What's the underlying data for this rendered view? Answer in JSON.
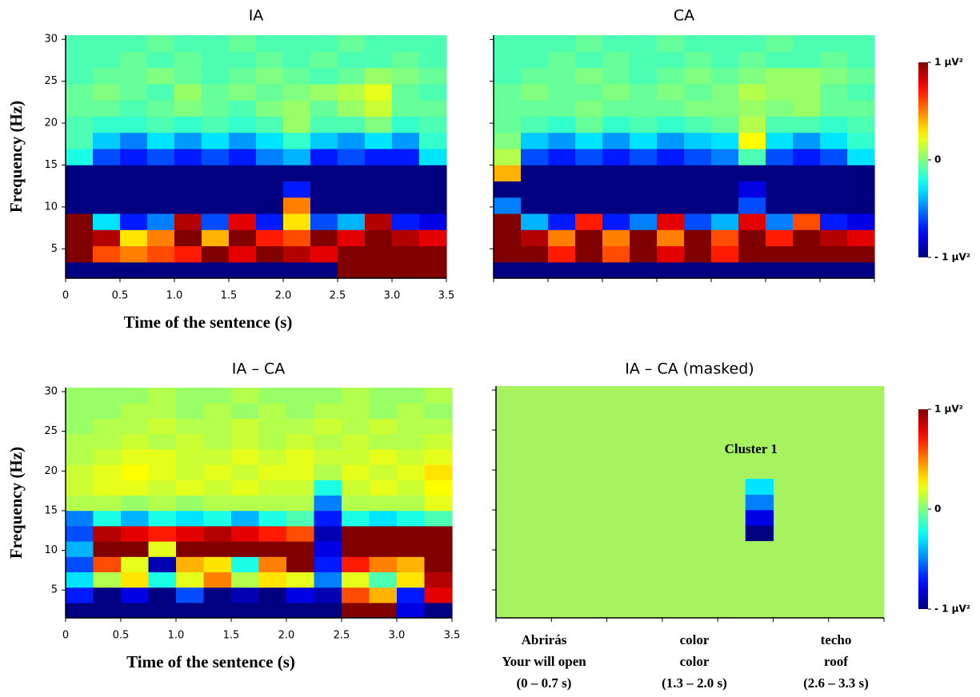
{
  "chart_data": [
    {
      "type": "heatmap",
      "title": "IA",
      "xlabel": "Time of the sentence (s)",
      "ylabel": "Frequency (Hz)",
      "xlim": [
        0,
        3.5
      ],
      "ylim": [
        1.5,
        30.5
      ],
      "zlim": [
        -1,
        1
      ],
      "tick_labels": true,
      "xticks": [
        0,
        0.5,
        {
          "value": 1,
          "label": "1.0"
        },
        1.5,
        {
          "value": 2,
          "label": "2.0"
        },
        2.5,
        {
          "value": 3,
          "label": "3.0"
        },
        3.5
      ],
      "yticks": [
        5,
        10,
        15,
        20,
        25,
        30
      ],
      "z": [
        [
          -1,
          -1,
          -1,
          -1,
          -1,
          -1,
          -1,
          -1,
          -1,
          -1,
          1,
          1,
          1,
          1
        ],
        [
          1,
          0.6,
          0.5,
          0.6,
          0.7,
          1,
          0.8,
          1,
          0.9,
          0.8,
          1,
          1,
          1,
          1
        ],
        [
          1,
          0.9,
          0.3,
          0.5,
          1,
          0.4,
          1,
          0.7,
          0.6,
          1,
          0.8,
          1,
          0.9,
          0.8
        ],
        [
          1,
          -0.3,
          -0.7,
          -0.5,
          0.9,
          -0.6,
          0.8,
          -0.7,
          0.3,
          -0.6,
          -0.4,
          0.9,
          -0.7,
          -0.8
        ],
        [
          -1,
          -1,
          -1,
          -1,
          -1,
          -1,
          -1,
          -1,
          0.5,
          -1,
          -1,
          -1,
          -1,
          -1
        ],
        [
          -1,
          -1,
          -1,
          -1,
          -1,
          -1,
          -1,
          -1,
          -0.7,
          -1,
          -1,
          -1,
          -1,
          -1
        ],
        [
          -1,
          -1,
          -1,
          -1,
          -1,
          -1,
          -1,
          -1,
          -1,
          -1,
          -1,
          -1,
          -1,
          -1
        ],
        [
          -0.2,
          -0.6,
          -0.7,
          -0.6,
          -0.7,
          -0.6,
          -0.7,
          -0.5,
          -0.4,
          -0.7,
          -0.6,
          -0.7,
          -0.7,
          -0.3
        ],
        [
          -0.1,
          -0.35,
          -0.5,
          -0.3,
          -0.45,
          -0.3,
          -0.45,
          -0.3,
          -0.15,
          -0.35,
          -0.45,
          -0.3,
          -0.45,
          -0.15
        ],
        [
          -0.1,
          -0.15,
          -0.15,
          -0.1,
          -0.15,
          -0.1,
          -0.15,
          -0.1,
          0.05,
          -0.1,
          -0.1,
          0,
          -0.15,
          -0.1
        ],
        [
          -0.05,
          -0.05,
          -0.1,
          -0.05,
          0,
          -0.05,
          -0.1,
          0,
          0.05,
          -0.05,
          0.05,
          0.15,
          -0.05,
          -0.05
        ],
        [
          -0.05,
          0,
          -0.05,
          -0.1,
          0.05,
          -0.05,
          0,
          -0.05,
          0,
          0.05,
          0.1,
          0.2,
          -0.05,
          -0.1
        ],
        [
          -0.1,
          -0.05,
          -0.05,
          0,
          -0.05,
          -0.1,
          -0.05,
          0,
          -0.05,
          -0.1,
          -0.05,
          0.05,
          0,
          -0.05
        ],
        [
          -0.1,
          -0.1,
          -0.05,
          -0.1,
          -0.05,
          -0.1,
          -0.1,
          -0.05,
          -0.1,
          -0.05,
          -0.1,
          -0.1,
          -0.05,
          -0.1
        ],
        [
          -0.1,
          -0.1,
          -0.1,
          -0.05,
          -0.1,
          -0.1,
          -0.05,
          -0.1,
          -0.1,
          -0.1,
          -0.05,
          -0.1,
          -0.1,
          -0.1
        ]
      ]
    },
    {
      "type": "heatmap",
      "title": "CA",
      "xlim": [
        0,
        3.5
      ],
      "ylim": [
        1.5,
        30.5
      ],
      "zlim": [
        -1,
        1
      ],
      "tick_labels": false,
      "xticks": [
        0,
        0.5,
        1,
        1.5,
        2,
        2.5,
        3,
        3.5
      ],
      "yticks": [
        5,
        10,
        15,
        20,
        25,
        30
      ],
      "colorbar": {
        "ticks": [
          {
            "value": 1,
            "label": "1 μV²"
          },
          0,
          {
            "value": -1,
            "label": "- 1 μV²"
          }
        ]
      },
      "z": [
        [
          -1,
          -1,
          -1,
          -1,
          -1,
          -1,
          -1,
          -1,
          -1,
          -1,
          -1,
          -1,
          -1,
          -1
        ],
        [
          1,
          1,
          0.7,
          1,
          0.6,
          1,
          0.8,
          1,
          0.7,
          1,
          1,
          1,
          1,
          1
        ],
        [
          1,
          0.9,
          0.5,
          1,
          0.5,
          1,
          0.5,
          1,
          0.6,
          1,
          0.7,
          1,
          0.9,
          0.8
        ],
        [
          1,
          -0.4,
          -0.7,
          0.7,
          -0.7,
          -0.5,
          0.8,
          -0.6,
          -0.4,
          0.8,
          -0.5,
          0.6,
          -0.7,
          -0.8
        ],
        [
          -0.5,
          -1,
          -1,
          -1,
          -1,
          -1,
          -1,
          -1,
          -1,
          -0.6,
          -1,
          -1,
          -1,
          -1
        ],
        [
          -1,
          -1,
          -1,
          -1,
          -1,
          -1,
          -1,
          -1,
          -1,
          -0.8,
          -1,
          -1,
          -1,
          -1
        ],
        [
          0.4,
          -1,
          -1,
          -1,
          -1,
          -1,
          -1,
          -1,
          -1,
          -1,
          -1,
          -1,
          -1,
          -1
        ],
        [
          0.1,
          -0.6,
          -0.7,
          -0.6,
          -0.7,
          -0.6,
          -0.7,
          -0.6,
          -0.5,
          -0.1,
          -0.6,
          -0.7,
          -0.6,
          -0.3
        ],
        [
          0,
          -0.35,
          -0.45,
          -0.3,
          -0.45,
          -0.3,
          -0.45,
          -0.35,
          -0.3,
          0.25,
          -0.3,
          -0.45,
          -0.3,
          -0.15
        ],
        [
          -0.05,
          -0.1,
          -0.15,
          -0.05,
          -0.15,
          -0.1,
          -0.15,
          -0.1,
          -0.05,
          0.1,
          -0.1,
          -0.1,
          -0.15,
          -0.1
        ],
        [
          -0.05,
          -0.05,
          -0.05,
          0,
          -0.05,
          -0.05,
          -0.05,
          0,
          0,
          0.05,
          0,
          0.05,
          -0.05,
          -0.05
        ],
        [
          -0.05,
          0,
          -0.05,
          -0.05,
          0,
          -0.05,
          0,
          -0.05,
          0,
          0.1,
          0.05,
          0.05,
          -0.05,
          -0.1
        ],
        [
          -0.1,
          -0.05,
          -0.05,
          0,
          -0.05,
          -0.1,
          -0.05,
          0,
          -0.05,
          0,
          0.05,
          0.05,
          0,
          -0.05
        ],
        [
          -0.1,
          -0.1,
          -0.05,
          -0.1,
          -0.05,
          -0.1,
          -0.1,
          -0.05,
          -0.1,
          -0.05,
          -0.1,
          -0.1,
          -0.05,
          -0.1
        ],
        [
          -0.1,
          -0.1,
          -0.1,
          -0.05,
          -0.1,
          -0.1,
          -0.05,
          -0.1,
          -0.1,
          -0.1,
          -0.05,
          -0.1,
          -0.1,
          -0.1
        ]
      ]
    },
    {
      "type": "heatmap",
      "title": "IA – CA",
      "xlabel": "Time of the sentence (s)",
      "ylabel": "Frequency (Hz)",
      "xlim": [
        0,
        3.5
      ],
      "ylim": [
        1.5,
        30.5
      ],
      "zlim": [
        -1,
        1
      ],
      "tick_labels": true,
      "xticks": [
        0,
        0.5,
        {
          "value": 1,
          "label": "1.0"
        },
        1.5,
        {
          "value": 2,
          "label": "2.0"
        },
        2.5,
        {
          "value": 3,
          "label": "3.0"
        },
        3.5
      ],
      "yticks": [
        5,
        10,
        15,
        20,
        25,
        30
      ],
      "z": [
        [
          -1,
          -1,
          -1,
          -1,
          -1,
          -1,
          -1,
          -1,
          -1,
          -1,
          1,
          1,
          -0.8,
          -1
        ],
        [
          -0.7,
          -1,
          -0.8,
          -1,
          -0.6,
          -1,
          -0.9,
          -1,
          -0.8,
          -0.9,
          0.6,
          0.4,
          -0.7,
          0.8
        ],
        [
          -0.3,
          0.1,
          0.3,
          -0.2,
          0.2,
          0.5,
          0.1,
          0.3,
          0.2,
          -0.5,
          0.2,
          -0.1,
          0.3,
          0.9
        ],
        [
          -0.6,
          0.6,
          0.2,
          -0.9,
          0.4,
          0.3,
          -0.2,
          0.5,
          1,
          -0.7,
          0.7,
          0.5,
          0.4,
          1
        ],
        [
          -0.4,
          1,
          1,
          0.2,
          1,
          1,
          1,
          1,
          1,
          -0.8,
          1,
          1,
          1,
          1
        ],
        [
          -0.6,
          0.9,
          0.8,
          0.7,
          0.8,
          0.9,
          0.8,
          0.7,
          0.6,
          -0.9,
          1,
          1,
          1,
          1
        ],
        [
          -0.5,
          -0.2,
          -0.4,
          -0.2,
          -0.3,
          -0.2,
          -0.4,
          -0.2,
          -0.1,
          -0.7,
          -0.2,
          -0.3,
          -0.2,
          -0.1
        ],
        [
          0.1,
          0.1,
          0.05,
          0.1,
          0.05,
          0.1,
          0.1,
          0.1,
          0.1,
          -0.5,
          0.1,
          0.1,
          0.1,
          0.2
        ],
        [
          0.15,
          0.2,
          0.2,
          0.15,
          0.2,
          0.15,
          0.2,
          0.15,
          0.15,
          -0.2,
          0.15,
          0.2,
          0.15,
          0.25
        ],
        [
          0.15,
          0.2,
          0.25,
          0.2,
          0.15,
          0.2,
          0.15,
          0.2,
          0.2,
          0.1,
          0.2,
          0.15,
          0.2,
          0.3
        ],
        [
          0.1,
          0.15,
          0.2,
          0.2,
          0.15,
          0.15,
          0.2,
          0.15,
          0.2,
          0.15,
          0.15,
          0.2,
          0.15,
          0.2
        ],
        [
          0.1,
          0.1,
          0.15,
          0.1,
          0.15,
          0.1,
          0.15,
          0.1,
          0.15,
          0.1,
          0.15,
          0.1,
          0.1,
          0.15
        ],
        [
          0.05,
          0.1,
          0.1,
          0.15,
          0.1,
          0.1,
          0.15,
          0.1,
          0.1,
          0.15,
          0.1,
          0.15,
          0.1,
          0.1
        ],
        [
          0.05,
          0.05,
          0.1,
          0.1,
          0.05,
          0.1,
          0.05,
          0.1,
          0.05,
          0.1,
          0.1,
          0.05,
          0.1,
          0.05
        ],
        [
          0.05,
          0.05,
          0.05,
          0.1,
          0.05,
          0.05,
          0.1,
          0.05,
          0.05,
          0.05,
          0.1,
          0.05,
          0.05,
          0.1
        ]
      ]
    },
    {
      "type": "heatmap",
      "title": "IA – CA (masked)",
      "xlim": [
        0,
        3.5
      ],
      "ylim": [
        1.5,
        30.5
      ],
      "zlim": [
        -1,
        1
      ],
      "tick_labels": false,
      "mask_color": "#a6f25f",
      "xticks": [
        0,
        0.5,
        1,
        1.5,
        2,
        2.5,
        3,
        3.5
      ],
      "yticks": [
        5,
        10,
        15,
        20,
        25,
        30
      ],
      "annotation": "Cluster 1",
      "x_annotations": [
        [
          "Abrirás",
          "Your will open",
          "(0 – 0.7 s)"
        ],
        [
          "color",
          "color",
          "(1.3 – 2.0 s)"
        ],
        [
          "techo",
          "roof",
          "(2.6 – 3.3 s)"
        ]
      ],
      "colorbar": {
        "ticks": [
          {
            "value": 1,
            "label": "1 μV²"
          },
          0,
          {
            "value": -1,
            "label": "- 1 μV²"
          }
        ]
      },
      "z": [
        [
          null,
          null,
          null,
          null,
          null,
          null,
          null,
          null,
          null,
          null,
          null,
          null,
          null,
          null
        ],
        [
          null,
          null,
          null,
          null,
          null,
          null,
          null,
          null,
          null,
          null,
          null,
          null,
          null,
          null
        ],
        [
          null,
          null,
          null,
          null,
          null,
          null,
          null,
          null,
          null,
          null,
          null,
          null,
          null,
          null
        ],
        [
          null,
          null,
          null,
          null,
          null,
          null,
          null,
          null,
          null,
          null,
          null,
          null,
          null,
          null
        ],
        [
          null,
          null,
          null,
          null,
          null,
          null,
          null,
          null,
          null,
          null,
          null,
          null,
          null,
          null
        ],
        [
          null,
          null,
          null,
          null,
          null,
          null,
          null,
          null,
          null,
          -1,
          null,
          null,
          null,
          null
        ],
        [
          null,
          null,
          null,
          null,
          null,
          null,
          null,
          null,
          null,
          -0.8,
          null,
          null,
          null,
          null
        ],
        [
          null,
          null,
          null,
          null,
          null,
          null,
          null,
          null,
          null,
          -0.5,
          null,
          null,
          null,
          null
        ],
        [
          null,
          null,
          null,
          null,
          null,
          null,
          null,
          null,
          null,
          -0.3,
          null,
          null,
          null,
          null
        ],
        [
          null,
          null,
          null,
          null,
          null,
          null,
          null,
          null,
          null,
          null,
          null,
          null,
          null,
          null
        ],
        [
          null,
          null,
          null,
          null,
          null,
          null,
          null,
          null,
          null,
          null,
          null,
          null,
          null,
          null
        ],
        [
          null,
          null,
          null,
          null,
          null,
          null,
          null,
          null,
          null,
          null,
          null,
          null,
          null,
          null
        ],
        [
          null,
          null,
          null,
          null,
          null,
          null,
          null,
          null,
          null,
          null,
          null,
          null,
          null,
          null
        ],
        [
          null,
          null,
          null,
          null,
          null,
          null,
          null,
          null,
          null,
          null,
          null,
          null,
          null,
          null
        ],
        [
          null,
          null,
          null,
          null,
          null,
          null,
          null,
          null,
          null,
          null,
          null,
          null,
          null,
          null
        ]
      ]
    }
  ]
}
